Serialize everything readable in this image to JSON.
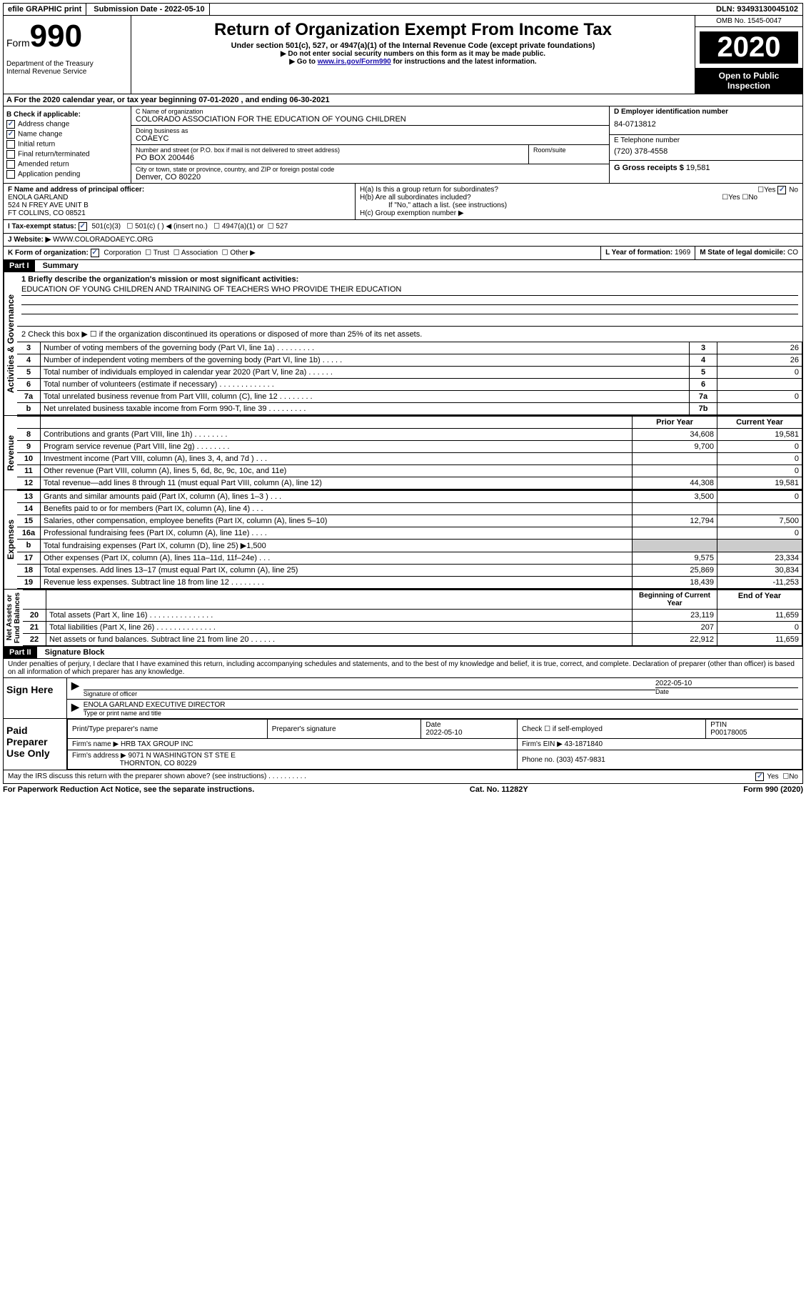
{
  "top": {
    "efile": "efile GRAPHIC print",
    "submission": "Submission Date - 2022-05-10",
    "dln": "DLN: 93493130045102"
  },
  "header": {
    "form_label": "Form",
    "form_num": "990",
    "title": "Return of Organization Exempt From Income Tax",
    "subtitle": "Under section 501(c), 527, or 4947(a)(1) of the Internal Revenue Code (except private foundations)",
    "note1": "▶ Do not enter social security numbers on this form as it may be made public.",
    "note2_pre": "▶ Go to ",
    "note2_link": "www.irs.gov/Form990",
    "note2_post": " for instructions and the latest information.",
    "dept": "Department of the Treasury\nInternal Revenue Service",
    "omb": "OMB No. 1545-0047",
    "year": "2020",
    "inspection": "Open to Public Inspection"
  },
  "section_a": "A For the 2020 calendar year, or tax year beginning 07-01-2020    , and ending 06-30-2021",
  "section_b": {
    "label": "B Check if applicable:",
    "items": [
      {
        "label": "Address change",
        "checked": true
      },
      {
        "label": "Name change",
        "checked": true
      },
      {
        "label": "Initial return",
        "checked": false
      },
      {
        "label": "Final return/terminated",
        "checked": false
      },
      {
        "label": "Amended return",
        "checked": false
      },
      {
        "label": "Application pending",
        "checked": false
      }
    ]
  },
  "section_c": {
    "name_label": "C Name of organization",
    "name": "COLORADO ASSOCIATION FOR THE EDUCATION OF YOUNG CHILDREN",
    "dba_label": "Doing business as",
    "dba": "COAEYC",
    "addr_label": "Number and street (or P.O. box if mail is not delivered to street address)",
    "room_label": "Room/suite",
    "addr": "PO BOX 200446",
    "city_label": "City or town, state or province, country, and ZIP or foreign postal code",
    "city": "Denver, CO  80220"
  },
  "section_d": {
    "ein_label": "D Employer identification number",
    "ein": "84-0713812",
    "phone_label": "E Telephone number",
    "phone": "(720) 378-4558",
    "gross_label": "G Gross receipts $",
    "gross": "19,581"
  },
  "section_f": {
    "label": "F  Name and address of principal officer:",
    "name": "ENOLA GARLAND",
    "addr1": "524 N FREY AVE UNIT B",
    "addr2": "FT COLLINS, CO  08521"
  },
  "section_h": {
    "ha": "H(a)  Is this a group return for subordinates?",
    "hb": "H(b)  Are all subordinates included?",
    "hb_note": "If \"No,\" attach a list. (see instructions)",
    "hc": "H(c)  Group exemption number ▶",
    "yes": "Yes",
    "no": "No"
  },
  "tax_status": {
    "label": "I  Tax-exempt status:",
    "opt1": "501(c)(3)",
    "opt2": "501(c) (   ) ◀ (insert no.)",
    "opt3": "4947(a)(1) or",
    "opt4": "527"
  },
  "website": {
    "label": "J  Website: ▶",
    "value": "WWW.COLORADOAEYC.ORG"
  },
  "section_k": {
    "label": "K Form of organization:",
    "corp": "Corporation",
    "trust": "Trust",
    "assoc": "Association",
    "other": "Other ▶"
  },
  "section_l": {
    "label": "L Year of formation:",
    "value": "1969"
  },
  "section_m": {
    "label": "M State of legal domicile:",
    "value": "CO"
  },
  "part1": {
    "part": "Part I",
    "title": "Summary",
    "line1_label": "1  Briefly describe the organization's mission or most significant activities:",
    "line1_val": "EDUCATION OF YOUNG CHILDREN AND TRAINING OF TEACHERS WHO PROVIDE THEIR EDUCATION",
    "line2": "2    Check this box ▶ ☐  if the organization discontinued its operations or disposed of more than 25% of its net assets.",
    "governance_rows": [
      {
        "n": "3",
        "desc": "Number of voting members of the governing body (Part VI, line 1a)   .    .    .    .    .    .    .    .    .",
        "box": "3",
        "val": "26"
      },
      {
        "n": "4",
        "desc": "Number of independent voting members of the governing body (Part VI, line 1b)   .    .    .    .    .",
        "box": "4",
        "val": "26"
      },
      {
        "n": "5",
        "desc": "Total number of individuals employed in calendar year 2020 (Part V, line 2a)   .    .    .    .    .    .",
        "box": "5",
        "val": "0"
      },
      {
        "n": "6",
        "desc": "Total number of volunteers (estimate if necessary)   .    .    .    .    .    .    .    .    .    .    .    .    .",
        "box": "6",
        "val": ""
      },
      {
        "n": "7a",
        "desc": "Total unrelated business revenue from Part VIII, column (C), line 12   .    .    .    .    .    .    .    .",
        "box": "7a",
        "val": "0"
      },
      {
        "n": "b",
        "desc": "Net unrelated business taxable income from Form 990-T, line 39   .    .    .    .    .    .    .    .    .",
        "box": "7b",
        "val": ""
      }
    ],
    "col_prior": "Prior Year",
    "col_current": "Current Year",
    "revenue_rows": [
      {
        "n": "8",
        "desc": "Contributions and grants (Part VIII, line 1h)   .    .    .    .    .    .    .    .",
        "prior": "34,608",
        "curr": "19,581"
      },
      {
        "n": "9",
        "desc": "Program service revenue (Part VIII, line 2g)   .    .    .    .    .    .    .    .",
        "prior": "9,700",
        "curr": "0"
      },
      {
        "n": "10",
        "desc": "Investment income (Part VIII, column (A), lines 3, 4, and 7d )   .    .    .",
        "prior": "",
        "curr": "0"
      },
      {
        "n": "11",
        "desc": "Other revenue (Part VIII, column (A), lines 5, 6d, 8c, 9c, 10c, and 11e)",
        "prior": "",
        "curr": "0"
      },
      {
        "n": "12",
        "desc": "Total revenue—add lines 8 through 11 (must equal Part VIII, column (A), line 12)",
        "prior": "44,308",
        "curr": "19,581"
      }
    ],
    "expense_rows": [
      {
        "n": "13",
        "desc": "Grants and similar amounts paid (Part IX, column (A), lines 1–3 )   .    .    .",
        "prior": "3,500",
        "curr": "0"
      },
      {
        "n": "14",
        "desc": "Benefits paid to or for members (Part IX, column (A), line 4)   .    .    .",
        "prior": "",
        "curr": ""
      },
      {
        "n": "15",
        "desc": "Salaries, other compensation, employee benefits (Part IX, column (A), lines 5–10)",
        "prior": "12,794",
        "curr": "7,500"
      },
      {
        "n": "16a",
        "desc": "Professional fundraising fees (Part IX, column (A), line 11e)   .    .    .    .",
        "prior": "",
        "curr": "0"
      },
      {
        "n": "b",
        "desc": "Total fundraising expenses (Part IX, column (D), line 25) ▶1,500",
        "prior": null,
        "curr": null
      },
      {
        "n": "17",
        "desc": "Other expenses (Part IX, column (A), lines 11a–11d, 11f–24e)   .    .    .",
        "prior": "9,575",
        "curr": "23,334"
      },
      {
        "n": "18",
        "desc": "Total expenses. Add lines 13–17 (must equal Part IX, column (A), line 25)",
        "prior": "25,869",
        "curr": "30,834"
      },
      {
        "n": "19",
        "desc": "Revenue less expenses. Subtract line 18 from line 12   .    .    .    .    .    .    .    .",
        "prior": "18,439",
        "curr": "-11,253"
      }
    ],
    "col_begin": "Beginning of Current Year",
    "col_end": "End of Year",
    "asset_rows": [
      {
        "n": "20",
        "desc": "Total assets (Part X, line 16)   .    .    .    .    .    .    .    .    .    .    .    .    .    .    .",
        "prior": "23,119",
        "curr": "11,659"
      },
      {
        "n": "21",
        "desc": "Total liabilities (Part X, line 26)   .    .    .    .    .    .    .    .    .    .    .    .    .    .",
        "prior": "207",
        "curr": "0"
      },
      {
        "n": "22",
        "desc": "Net assets or fund balances. Subtract line 21 from line 20   .    .    .    .    .    .",
        "prior": "22,912",
        "curr": "11,659"
      }
    ]
  },
  "part2": {
    "part": "Part II",
    "title": "Signature Block",
    "declaration": "Under penalties of perjury, I declare that I have examined this return, including accompanying schedules and statements, and to the best of my knowledge and belief, it is true, correct, and complete. Declaration of preparer (other than officer) is based on all information of which preparer has any knowledge.",
    "sign_here": "Sign Here",
    "sig_officer": "Signature of officer",
    "sig_date": "2022-05-10",
    "date_label": "Date",
    "officer_name": "ENOLA GARLAND  EXECUTIVE DIRECTOR",
    "type_label": "Type or print name and title",
    "paid_prep": "Paid Preparer Use Only",
    "prep_name_label": "Print/Type preparer's name",
    "prep_sig_label": "Preparer's signature",
    "prep_date_label": "Date",
    "prep_date": "2022-05-10",
    "prep_check_label": "Check ☐ if self-employed",
    "ptin_label": "PTIN",
    "ptin": "P00178005",
    "firm_name_label": "Firm's name    ▶",
    "firm_name": "HRB TAX GROUP INC",
    "firm_ein_label": "Firm's EIN ▶",
    "firm_ein": "43-1871840",
    "firm_addr_label": "Firm's address ▶",
    "firm_addr1": "9071 N WASHINGTON ST STE E",
    "firm_addr2": "THORNTON, CO  80229",
    "firm_phone_label": "Phone no.",
    "firm_phone": "(303) 457-9831",
    "discuss": "May the IRS discuss this return with the preparer shown above? (see instructions)   .    .    .    .    .    .    .    .    .    .",
    "yes": "Yes",
    "no": "No"
  },
  "footer": {
    "paperwork": "For Paperwork Reduction Act Notice, see the separate instructions.",
    "cat": "Cat. No. 11282Y",
    "form": "Form 990 (2020)"
  }
}
